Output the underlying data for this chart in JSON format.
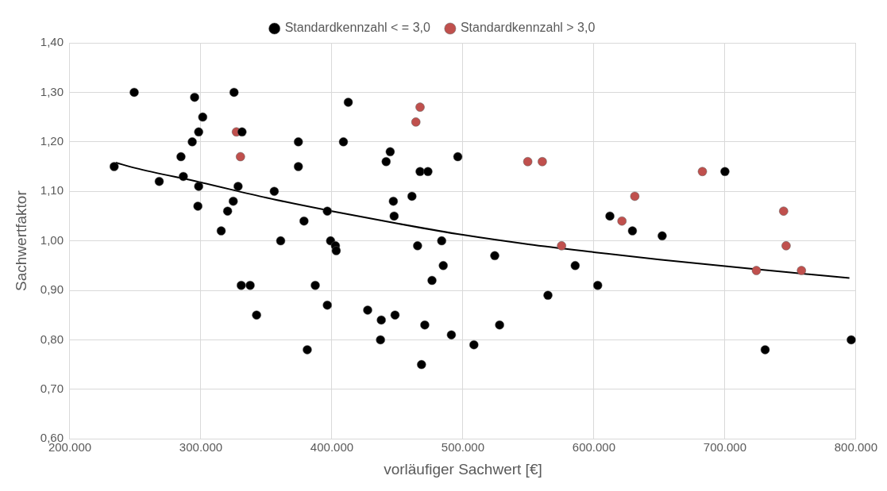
{
  "chart_data": {
    "type": "scatter",
    "xlabel": "vorläufiger Sachwert [€]",
    "ylabel": "Sachwertfaktor",
    "xlim": [
      200000,
      800000
    ],
    "ylim": [
      0.6,
      1.4
    ],
    "xticks": [
      {
        "value": 200000,
        "label": "200.000"
      },
      {
        "value": 300000,
        "label": "300.000"
      },
      {
        "value": 400000,
        "label": "400.000"
      },
      {
        "value": 500000,
        "label": "500.000"
      },
      {
        "value": 600000,
        "label": "600.000"
      },
      {
        "value": 700000,
        "label": "700.000"
      },
      {
        "value": 800000,
        "label": "800.000"
      }
    ],
    "yticks": [
      {
        "value": 0.6,
        "label": "0,60"
      },
      {
        "value": 0.7,
        "label": "0,70"
      },
      {
        "value": 0.8,
        "label": "0,80"
      },
      {
        "value": 0.9,
        "label": "0,90"
      },
      {
        "value": 1.0,
        "label": "1,00"
      },
      {
        "value": 1.1,
        "label": "1,10"
      },
      {
        "value": 1.2,
        "label": "1,20"
      },
      {
        "value": 1.3,
        "label": "1,30"
      },
      {
        "value": 1.4,
        "label": "1,40"
      }
    ],
    "grid": true,
    "legend": "top",
    "marker": "circle",
    "series": [
      {
        "name": "Standardkennzahl < = 3,0",
        "color": "#000000",
        "x": [
          233800,
          249100,
          268200,
          284800,
          286600,
          293400,
          295200,
          298300,
          298300,
          297700,
          301400,
          315500,
          320400,
          324700,
          325300,
          328400,
          331400,
          330800,
          337600,
          342500,
          356000,
          360900,
          374400,
          374400,
          378700,
          381200,
          387300,
          396500,
          396500,
          399000,
          402700,
          403300,
          408800,
          412500,
          427300,
          437700,
          437100,
          441400,
          444500,
          446900,
          447500,
          448200,
          461100,
          465400,
          467300,
          468400,
          470900,
          473300,
          476400,
          483800,
          485000,
          491200,
          496100,
          508400,
          524300,
          528000,
          564900,
          585700,
          602900,
          612200,
          629400,
          652100,
          700000,
          730700,
          796400
        ],
        "values": [
          1.15,
          1.3,
          1.12,
          1.17,
          1.13,
          1.2,
          1.29,
          1.22,
          1.11,
          1.07,
          1.25,
          1.02,
          1.06,
          1.08,
          1.3,
          1.11,
          1.22,
          0.91,
          0.91,
          0.85,
          1.1,
          1.0,
          1.2,
          1.15,
          1.04,
          0.78,
          0.91,
          1.06,
          0.87,
          1.0,
          0.99,
          0.98,
          1.2,
          1.28,
          0.86,
          0.84,
          0.8,
          1.16,
          1.18,
          1.08,
          1.05,
          0.85,
          1.09,
          0.99,
          1.14,
          0.75,
          0.83,
          1.14,
          0.92,
          1.0,
          0.95,
          0.81,
          1.17,
          0.79,
          0.97,
          0.83,
          0.89,
          0.95,
          0.91,
          1.05,
          1.02,
          1.01,
          1.14,
          0.78,
          0.8
        ]
      },
      {
        "name": "Standardkennzahl > 3,0",
        "color": "#c0504d",
        "x": [
          327100,
          330200,
          464100,
          467300,
          549500,
          560600,
          575300,
          621400,
          631200,
          682800,
          724000,
          744800,
          746700,
          758400
        ],
        "values": [
          1.22,
          1.17,
          1.24,
          1.27,
          1.16,
          1.16,
          0.99,
          1.04,
          1.09,
          1.14,
          0.94,
          1.06,
          0.99,
          0.94
        ]
      },
      {
        "type": "line",
        "color": "#000000",
        "marker": "none",
        "x": [
          235000,
          250000,
          300000,
          350000,
          400000,
          450000,
          500000,
          550000,
          600000,
          650000,
          700000,
          750000,
          795000
        ],
        "values": [
          1.158,
          1.147,
          1.118,
          1.087,
          1.06,
          1.035,
          1.012,
          0.993,
          0.977,
          0.962,
          0.949,
          0.936,
          0.925
        ]
      }
    ]
  }
}
